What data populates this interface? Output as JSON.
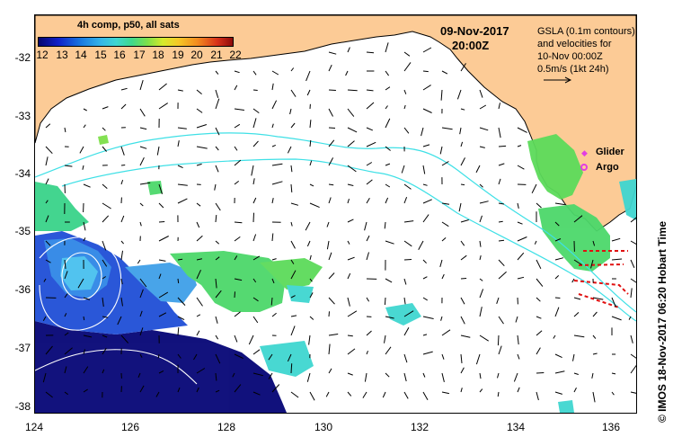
{
  "colorbar": {
    "title": "4h comp, p50, all sats",
    "ticks": [
      "12",
      "13",
      "14",
      "15",
      "16",
      "17",
      "18",
      "19",
      "20",
      "21",
      "22"
    ]
  },
  "date": "09-Nov-2017",
  "time": "20:00Z",
  "legend": {
    "lines": [
      "GSLA (0.1m contours)",
      "and velocities for",
      "10-Nov 00:00Z",
      "0.5m/s (1kt 24h)"
    ],
    "glider": "Glider",
    "argo": "Argo"
  },
  "axes": {
    "y_labels": [
      "-32",
      "-33",
      "-34",
      "-35",
      "-36",
      "-37",
      "-38"
    ],
    "x_labels": [
      "124",
      "126",
      "128",
      "130",
      "132",
      "134",
      "136"
    ],
    "lon_range": [
      124,
      136.5
    ],
    "lat_range": [
      -38.1,
      -31.35
    ]
  },
  "credit": "© IMOS 18-Nov-2017 06:20 Hobart Time",
  "colors": {
    "land": "#fccb96",
    "ocean": "#ffffff",
    "contour": "#3fe0e6",
    "sst_contour": "#ffffff",
    "argo_marker": "#e23de2",
    "glider_marker": "#e23de2",
    "glider_track": "#e01010"
  }
}
